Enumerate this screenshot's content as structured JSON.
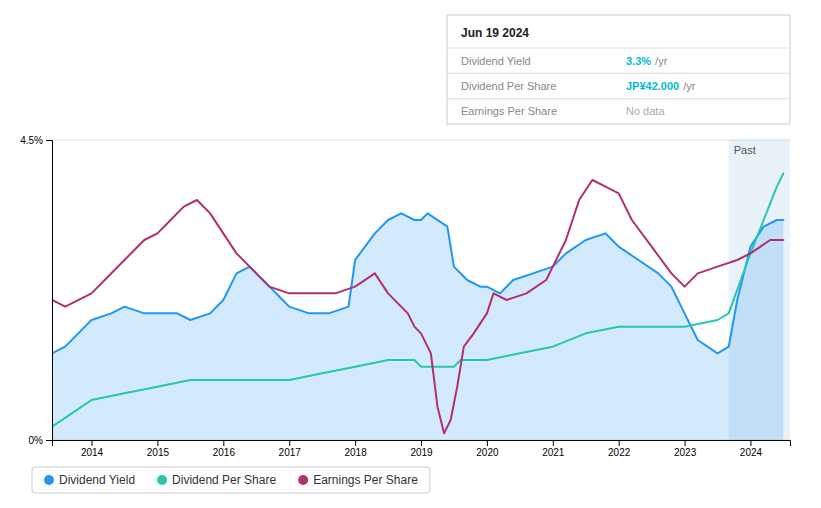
{
  "chart_data": {
    "type": "line",
    "xlim": [
      2013.4,
      2024.6
    ],
    "xticks": [
      2014,
      2015,
      2016,
      2017,
      2018,
      2019,
      2020,
      2021,
      2022,
      2023,
      2024
    ],
    "ylim": [
      0.0,
      0.045
    ],
    "yticks": [
      {
        "value": 0.0,
        "label": "0%"
      },
      {
        "value": 0.045,
        "label": "4.5%"
      }
    ],
    "grid": true,
    "legend": "bottom",
    "annotations": [
      {
        "text": "Past",
        "x": 2023.67
      }
    ],
    "info_box": {
      "date": "Jun 19 2024",
      "rows": [
        {
          "label": "Dividend Yield",
          "value": "3.3%",
          "unit": "/yr",
          "color": "#00bcd4"
        },
        {
          "label": "Dividend Per Share",
          "value": "JP¥42.000",
          "unit": "/yr",
          "color": "#00bcd4"
        },
        {
          "label": "Earnings Per Share",
          "value": "No data",
          "color": "#aaaaaa"
        }
      ]
    },
    "series": [
      {
        "name": "Dividend Yield",
        "type": "area",
        "color": "#2196f3",
        "x": [
          2013.4,
          2013.6,
          2013.9,
          2014.0,
          2014.3,
          2014.5,
          2014.8,
          2015.0,
          2015.3,
          2015.5,
          2015.8,
          2016.0,
          2016.2,
          2016.4,
          2016.6,
          2016.7,
          2016.9,
          2017.0,
          2017.3,
          2017.6,
          2017.9,
          2018.0,
          2018.3,
          2018.5,
          2018.7,
          2018.9,
          2019.0,
          2019.1,
          2019.4,
          2019.5,
          2019.7,
          2019.9,
          2020.0,
          2020.2,
          2020.4,
          2020.7,
          2021.0,
          2021.2,
          2021.5,
          2021.8,
          2021.9,
          2022.0,
          2022.3,
          2022.6,
          2022.8,
          2023.0,
          2023.2,
          2023.5,
          2023.67,
          2023.8,
          2024.0,
          2024.2,
          2024.4,
          2024.5
        ],
        "values": [
          0.013,
          0.014,
          0.017,
          0.018,
          0.019,
          0.02,
          0.019,
          0.019,
          0.019,
          0.018,
          0.019,
          0.021,
          0.025,
          0.026,
          0.024,
          0.023,
          0.021,
          0.02,
          0.019,
          0.019,
          0.02,
          0.027,
          0.031,
          0.033,
          0.034,
          0.033,
          0.033,
          0.034,
          0.032,
          0.026,
          0.024,
          0.023,
          0.023,
          0.022,
          0.024,
          0.025,
          0.026,
          0.028,
          0.03,
          0.031,
          0.03,
          0.029,
          0.027,
          0.025,
          0.023,
          0.019,
          0.015,
          0.013,
          0.014,
          0.021,
          0.029,
          0.032,
          0.033,
          0.033
        ]
      },
      {
        "name": "Dividend Per Share",
        "type": "line",
        "color": "#26c6b0",
        "x": [
          2013.4,
          2013.7,
          2014.0,
          2014.5,
          2015.0,
          2015.5,
          2016.0,
          2016.5,
          2017.0,
          2017.5,
          2018.0,
          2018.5,
          2018.9,
          2019.0,
          2019.1,
          2019.5,
          2019.6,
          2020.0,
          2020.5,
          2021.0,
          2021.5,
          2022.0,
          2022.5,
          2023.0,
          2023.5,
          2023.67,
          2024.0,
          2024.4,
          2024.5
        ],
        "values": [
          0.002,
          0.004,
          0.006,
          0.007,
          0.008,
          0.009,
          0.009,
          0.009,
          0.009,
          0.01,
          0.011,
          0.012,
          0.012,
          0.011,
          0.011,
          0.011,
          0.012,
          0.012,
          0.013,
          0.014,
          0.016,
          0.017,
          0.017,
          0.017,
          0.018,
          0.019,
          0.028,
          0.038,
          0.04
        ]
      },
      {
        "name": "Earnings Per Share",
        "type": "line",
        "color": "#b03070",
        "x": [
          2013.4,
          2013.6,
          2014.0,
          2014.2,
          2014.5,
          2014.8,
          2015.0,
          2015.2,
          2015.4,
          2015.6,
          2015.8,
          2016.0,
          2016.2,
          2016.5,
          2016.7,
          2017.0,
          2017.2,
          2017.5,
          2017.7,
          2018.0,
          2018.3,
          2018.5,
          2018.8,
          2018.9,
          2019.0,
          2019.15,
          2019.25,
          2019.35,
          2019.45,
          2019.55,
          2019.65,
          2019.8,
          2020.0,
          2020.1,
          2020.3,
          2020.6,
          2020.9,
          2021.0,
          2021.2,
          2021.4,
          2021.6,
          2021.8,
          2022.0,
          2022.2,
          2022.5,
          2022.8,
          2023.0,
          2023.2,
          2023.5,
          2023.8,
          2024.0,
          2024.3,
          2024.5
        ],
        "values": [
          0.021,
          0.02,
          0.022,
          0.024,
          0.027,
          0.03,
          0.031,
          0.033,
          0.035,
          0.036,
          0.034,
          0.031,
          0.028,
          0.025,
          0.023,
          0.022,
          0.022,
          0.022,
          0.022,
          0.023,
          0.025,
          0.022,
          0.019,
          0.017,
          0.016,
          0.013,
          0.005,
          0.001,
          0.003,
          0.008,
          0.014,
          0.016,
          0.019,
          0.022,
          0.021,
          0.022,
          0.024,
          0.026,
          0.03,
          0.036,
          0.039,
          0.038,
          0.037,
          0.033,
          0.029,
          0.025,
          0.023,
          0.025,
          0.026,
          0.027,
          0.028,
          0.03,
          0.03
        ]
      }
    ]
  }
}
